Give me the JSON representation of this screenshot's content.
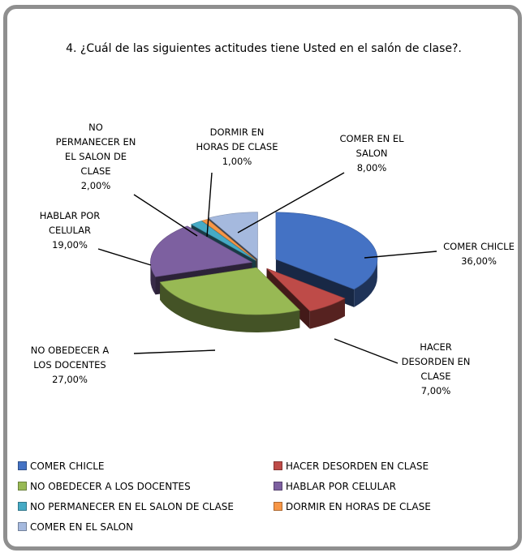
{
  "chart_data": {
    "type": "pie",
    "title": "4. ¿Cuál de las siguientes actitudes tiene Usted en el salón de clase?.",
    "slices": [
      {
        "category": "COMER CHICLE",
        "label_lines": [
          "COMER CHICLE"
        ],
        "value_label": "36,00%",
        "value": 36,
        "color": "#4472c4"
      },
      {
        "category": "HACER DESORDEN EN CLASE",
        "label_lines": [
          "HACER",
          "DESORDEN EN",
          "CLASE"
        ],
        "value_label": "7,00%",
        "value": 7,
        "color": "#be4b48"
      },
      {
        "category": "NO OBEDECER A LOS DOCENTES",
        "label_lines": [
          "NO OBEDECER A",
          "LOS DOCENTES"
        ],
        "value_label": "27,00%",
        "value": 27,
        "color": "#98b954"
      },
      {
        "category": "HABLAR POR CELULAR",
        "label_lines": [
          "HABLAR POR",
          "CELULAR"
        ],
        "value_label": "19,00%",
        "value": 19,
        "color": "#7d60a0"
      },
      {
        "category": "NO PERMANECER EN EL SALON DE CLASE",
        "label_lines": [
          "NO",
          "PERMANECER EN",
          "EL SALON DE",
          "CLASE"
        ],
        "value_label": "2,00%",
        "value": 2,
        "color": "#46aac5"
      },
      {
        "category": "DORMIR EN HORAS DE CLASE",
        "label_lines": [
          "DORMIR EN",
          "HORAS DE CLASE"
        ],
        "value_label": "1,00%",
        "value": 1,
        "color": "#f79646"
      },
      {
        "category": "COMER EN EL SALON",
        "label_lines": [
          "COMER EN EL",
          "SALON"
        ],
        "value_label": "8,00%",
        "value": 8,
        "color": "#a5b9de"
      }
    ],
    "legend_position": "bottom"
  }
}
